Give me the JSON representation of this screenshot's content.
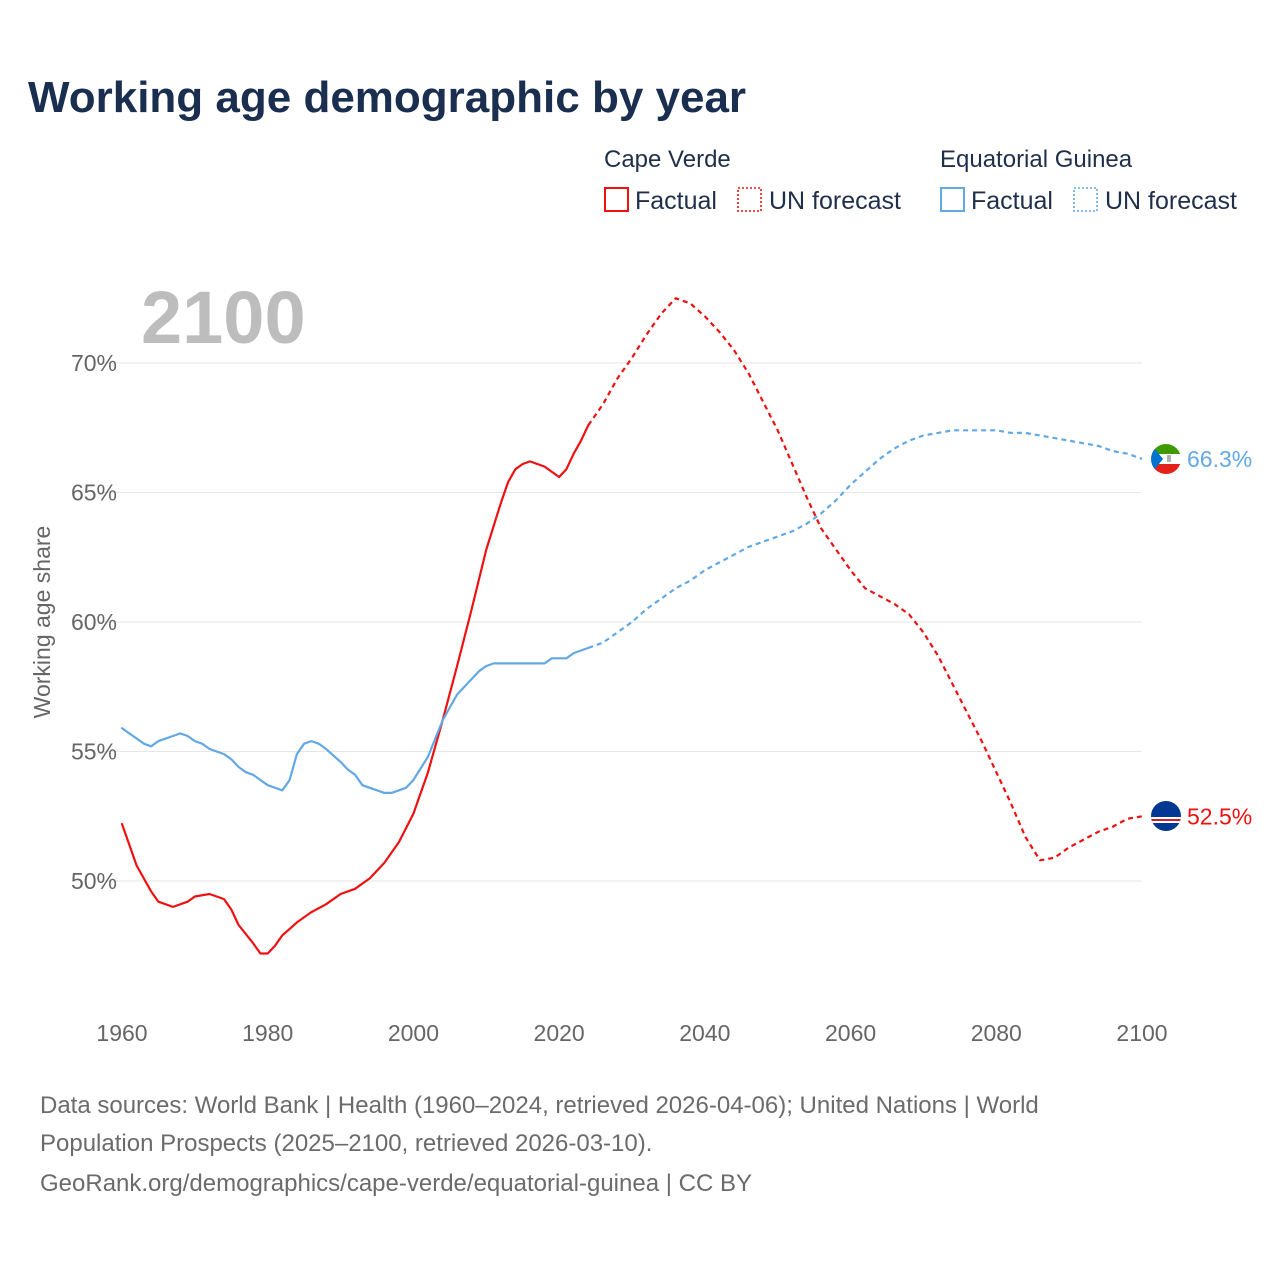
{
  "title": "Working age demographic by year",
  "legend": {
    "groups": [
      {
        "country": "Cape Verde",
        "color": "#ee1111",
        "items": [
          {
            "label": "Factual",
            "style": "solid"
          },
          {
            "label": "UN forecast",
            "style": "dotted"
          }
        ]
      },
      {
        "country": "Equatorial Guinea",
        "color": "#62a8e5",
        "items": [
          {
            "label": "Factual",
            "style": "solid"
          },
          {
            "label": "UN forecast",
            "style": "dotted"
          }
        ]
      }
    ]
  },
  "year_display": "2100",
  "source_lines": [
    "Data sources: World Bank | Health (1960–2024, retrieved 2026-04-06); United Nations | World",
    "Population Prospects (2025–2100, retrieved 2026-03-10).",
    "GeoRank.org/demographics/cape-verde/equatorial-guinea | CC BY"
  ],
  "chart_data": {
    "type": "line",
    "title": "Working age demographic by year",
    "xlabel": "",
    "ylabel": "Working age share",
    "xlim": [
      1960,
      2100
    ],
    "ylim": [
      45,
      72
    ],
    "x_ticks": [
      1960,
      1980,
      2000,
      2020,
      2040,
      2060,
      2080,
      2100
    ],
    "y_ticks": [
      50,
      55,
      60,
      65,
      70
    ],
    "y_tick_labels": [
      "50%",
      "55%",
      "60%",
      "65%",
      "70%"
    ],
    "grid": true,
    "factual_end_year": 2024,
    "series": [
      {
        "name": "Cape Verde",
        "color": "#ee1111",
        "end_label": "52.5%",
        "points": [
          [
            1960,
            52.2
          ],
          [
            1962,
            50.6
          ],
          [
            1964,
            49.6
          ],
          [
            1965,
            49.2
          ],
          [
            1967,
            49.0
          ],
          [
            1969,
            49.2
          ],
          [
            1970,
            49.4
          ],
          [
            1972,
            49.5
          ],
          [
            1973,
            49.4
          ],
          [
            1974,
            49.3
          ],
          [
            1975,
            48.9
          ],
          [
            1976,
            48.3
          ],
          [
            1978,
            47.6
          ],
          [
            1979,
            47.2
          ],
          [
            1980,
            47.2
          ],
          [
            1981,
            47.5
          ],
          [
            1982,
            47.9
          ],
          [
            1984,
            48.4
          ],
          [
            1986,
            48.8
          ],
          [
            1988,
            49.1
          ],
          [
            1990,
            49.5
          ],
          [
            1992,
            49.7
          ],
          [
            1994,
            50.1
          ],
          [
            1996,
            50.7
          ],
          [
            1998,
            51.5
          ],
          [
            2000,
            52.6
          ],
          [
            2002,
            54.2
          ],
          [
            2004,
            56.2
          ],
          [
            2006,
            58.3
          ],
          [
            2008,
            60.5
          ],
          [
            2010,
            62.8
          ],
          [
            2012,
            64.6
          ],
          [
            2013,
            65.4
          ],
          [
            2014,
            65.9
          ],
          [
            2015,
            66.1
          ],
          [
            2016,
            66.2
          ],
          [
            2018,
            66.0
          ],
          [
            2020,
            65.6
          ],
          [
            2021,
            65.9
          ],
          [
            2022,
            66.5
          ],
          [
            2023,
            67.0
          ],
          [
            2024,
            67.6
          ],
          [
            2026,
            68.4
          ],
          [
            2028,
            69.4
          ],
          [
            2030,
            70.2
          ],
          [
            2032,
            71.1
          ],
          [
            2034,
            71.9
          ],
          [
            2036,
            72.5
          ],
          [
            2038,
            72.3
          ],
          [
            2040,
            71.8
          ],
          [
            2042,
            71.2
          ],
          [
            2044,
            70.5
          ],
          [
            2046,
            69.6
          ],
          [
            2048,
            68.5
          ],
          [
            2050,
            67.4
          ],
          [
            2052,
            66.1
          ],
          [
            2054,
            64.8
          ],
          [
            2056,
            63.6
          ],
          [
            2058,
            62.8
          ],
          [
            2060,
            62.0
          ],
          [
            2062,
            61.3
          ],
          [
            2064,
            61.0
          ],
          [
            2066,
            60.7
          ],
          [
            2068,
            60.3
          ],
          [
            2070,
            59.6
          ],
          [
            2072,
            58.7
          ],
          [
            2074,
            57.6
          ],
          [
            2076,
            56.5
          ],
          [
            2078,
            55.4
          ],
          [
            2080,
            54.2
          ],
          [
            2082,
            53.0
          ],
          [
            2084,
            51.7
          ],
          [
            2086,
            50.8
          ],
          [
            2088,
            50.9
          ],
          [
            2090,
            51.3
          ],
          [
            2092,
            51.6
          ],
          [
            2094,
            51.9
          ],
          [
            2096,
            52.1
          ],
          [
            2098,
            52.4
          ],
          [
            2100,
            52.5
          ]
        ]
      },
      {
        "name": "Equatorial Guinea",
        "color": "#62a8e5",
        "end_label": "66.3%",
        "points": [
          [
            1960,
            55.9
          ],
          [
            1962,
            55.5
          ],
          [
            1963,
            55.3
          ],
          [
            1964,
            55.2
          ],
          [
            1965,
            55.4
          ],
          [
            1967,
            55.6
          ],
          [
            1968,
            55.7
          ],
          [
            1969,
            55.6
          ],
          [
            1970,
            55.4
          ],
          [
            1971,
            55.3
          ],
          [
            1972,
            55.1
          ],
          [
            1974,
            54.9
          ],
          [
            1975,
            54.7
          ],
          [
            1976,
            54.4
          ],
          [
            1977,
            54.2
          ],
          [
            1978,
            54.1
          ],
          [
            1979,
            53.9
          ],
          [
            1980,
            53.7
          ],
          [
            1982,
            53.5
          ],
          [
            1983,
            53.9
          ],
          [
            1984,
            54.9
          ],
          [
            1985,
            55.3
          ],
          [
            1986,
            55.4
          ],
          [
            1987,
            55.3
          ],
          [
            1988,
            55.1
          ],
          [
            1990,
            54.6
          ],
          [
            1991,
            54.3
          ],
          [
            1992,
            54.1
          ],
          [
            1993,
            53.7
          ],
          [
            1994,
            53.6
          ],
          [
            1996,
            53.4
          ],
          [
            1997,
            53.4
          ],
          [
            1999,
            53.6
          ],
          [
            2000,
            53.9
          ],
          [
            2002,
            54.8
          ],
          [
            2004,
            56.2
          ],
          [
            2006,
            57.2
          ],
          [
            2008,
            57.8
          ],
          [
            2009,
            58.1
          ],
          [
            2010,
            58.3
          ],
          [
            2011,
            58.4
          ],
          [
            2012,
            58.4
          ],
          [
            2014,
            58.4
          ],
          [
            2016,
            58.4
          ],
          [
            2018,
            58.4
          ],
          [
            2019,
            58.6
          ],
          [
            2020,
            58.6
          ],
          [
            2021,
            58.6
          ],
          [
            2022,
            58.8
          ],
          [
            2024,
            59.0
          ],
          [
            2026,
            59.2
          ],
          [
            2028,
            59.6
          ],
          [
            2030,
            60.0
          ],
          [
            2032,
            60.5
          ],
          [
            2034,
            60.9
          ],
          [
            2036,
            61.3
          ],
          [
            2038,
            61.6
          ],
          [
            2040,
            62.0
          ],
          [
            2042,
            62.3
          ],
          [
            2044,
            62.6
          ],
          [
            2046,
            62.9
          ],
          [
            2048,
            63.1
          ],
          [
            2050,
            63.3
          ],
          [
            2052,
            63.5
          ],
          [
            2054,
            63.8
          ],
          [
            2056,
            64.2
          ],
          [
            2058,
            64.7
          ],
          [
            2060,
            65.3
          ],
          [
            2062,
            65.8
          ],
          [
            2064,
            66.3
          ],
          [
            2066,
            66.7
          ],
          [
            2068,
            67.0
          ],
          [
            2070,
            67.2
          ],
          [
            2072,
            67.3
          ],
          [
            2074,
            67.4
          ],
          [
            2076,
            67.4
          ],
          [
            2078,
            67.4
          ],
          [
            2080,
            67.4
          ],
          [
            2082,
            67.3
          ],
          [
            2084,
            67.3
          ],
          [
            2086,
            67.2
          ],
          [
            2088,
            67.1
          ],
          [
            2090,
            67.0
          ],
          [
            2092,
            66.9
          ],
          [
            2094,
            66.8
          ],
          [
            2096,
            66.6
          ],
          [
            2098,
            66.5
          ],
          [
            2100,
            66.3
          ]
        ]
      }
    ]
  }
}
